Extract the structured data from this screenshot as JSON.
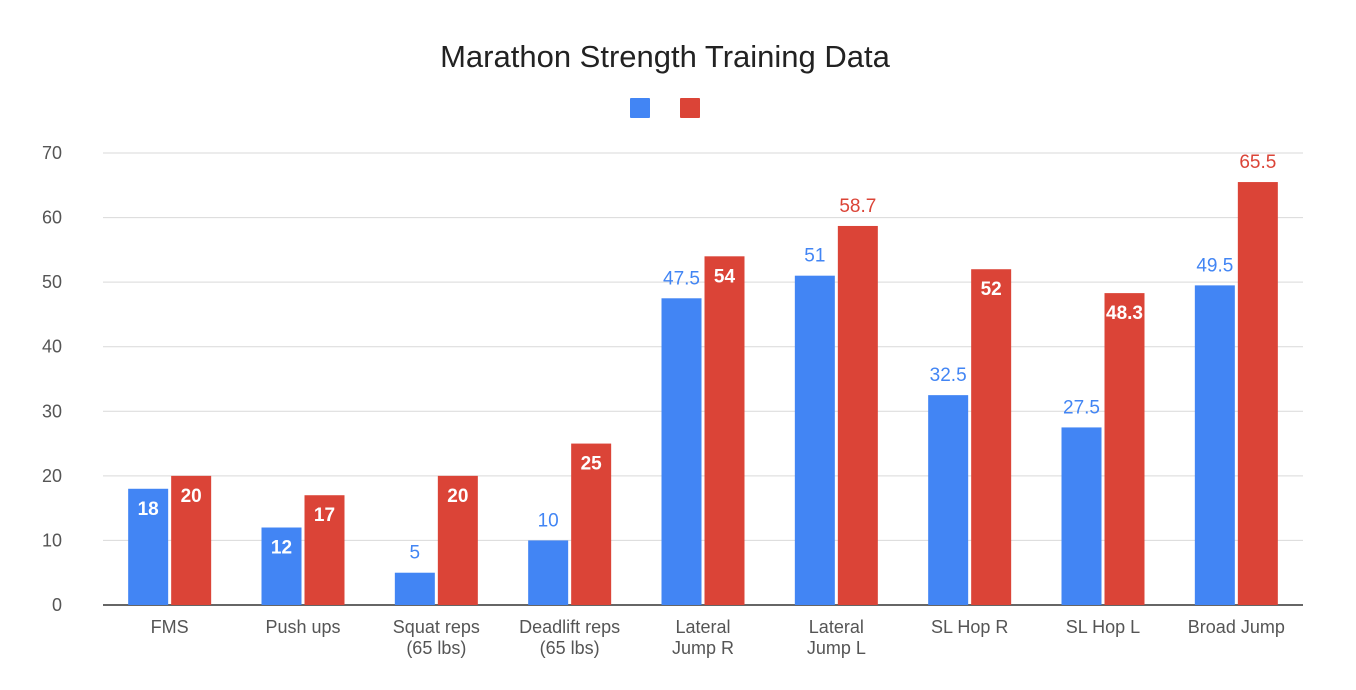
{
  "chart_data": {
    "type": "bar",
    "title": "Marathon Strength Training Data",
    "xlabel": "",
    "ylabel": "",
    "ylim": [
      0,
      70
    ],
    "yticks": [
      0,
      10,
      20,
      30,
      40,
      50,
      60,
      70
    ],
    "grid": true,
    "legend": "top-center",
    "categories": [
      [
        "FMS"
      ],
      [
        "Push ups"
      ],
      [
        "Squat reps",
        "(65 lbs)"
      ],
      [
        "Deadlift reps",
        "(65 lbs)"
      ],
      [
        "Lateral",
        "Jump R"
      ],
      [
        "Lateral",
        "Jump L"
      ],
      [
        "SL Hop R"
      ],
      [
        "SL Hop L"
      ],
      [
        "Broad Jump"
      ]
    ],
    "series": [
      {
        "color": "#4285f4",
        "values": [
          18,
          12,
          5,
          10,
          47.5,
          51,
          32.5,
          27.5,
          49.5
        ],
        "labels": [
          "18",
          "12",
          "5",
          "10",
          "47.5",
          "51",
          "32.5",
          "27.5",
          "49.5"
        ]
      },
      {
        "color": "#db4437",
        "values": [
          20,
          17,
          20,
          25,
          54,
          58.7,
          52,
          48.3,
          65.5
        ],
        "labels": [
          "20",
          "17",
          "20",
          "25",
          "54",
          "58.7",
          "52",
          "48.3",
          "65.5"
        ]
      }
    ]
  }
}
